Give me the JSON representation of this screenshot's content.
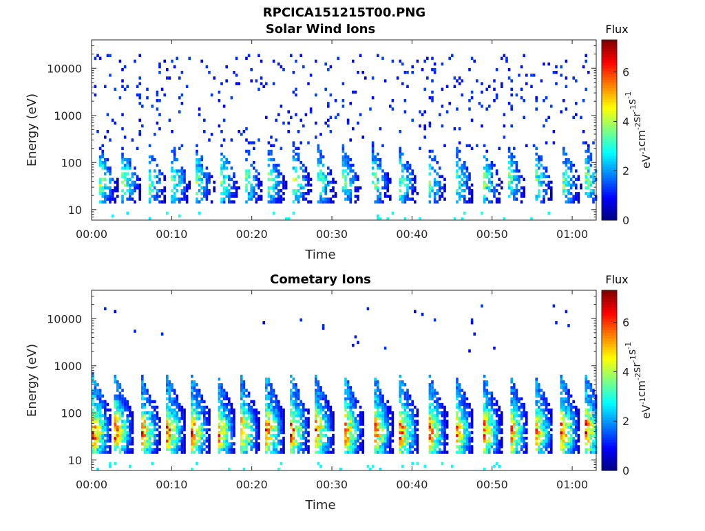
{
  "figure": {
    "title": "RPCICA151215T00.PNG"
  },
  "chart_data": [
    {
      "type": "heatmap",
      "title": "Solar Wind Ions",
      "xlabel": "Time",
      "ylabel": "Energy (eV)",
      "y_scale": "log",
      "xlim": [
        "00:00",
        "01:03"
      ],
      "ylim": [
        6,
        40000
      ],
      "x_ticks": [
        "00:00",
        "00:10",
        "00:20",
        "00:30",
        "00:40",
        "00:50",
        "01:00"
      ],
      "y_ticks": [
        10,
        100,
        1000,
        10000
      ],
      "y_tick_labels": [
        "10",
        "100",
        "1000",
        "10000"
      ],
      "colorbar": {
        "label": "Flux",
        "units_label": "eV-1cm-2sr-1s-1",
        "range": [
          0,
          7.3
        ],
        "ticks": [
          0,
          2,
          4,
          6
        ],
        "colormap": "jet"
      },
      "sweep_start_minutes": [
        0.8,
        3.7,
        6.9,
        9.8,
        12.8,
        15.9,
        18.9,
        21.8,
        25.0,
        28.0,
        31.1,
        34.9,
        38.2,
        41.8,
        45.2,
        48.7,
        51.7,
        55.1,
        58.6,
        61.5
      ],
      "peak_energy_eV": 40,
      "peak_flux": 4.3,
      "background_energy_range_eV": [
        200,
        20000
      ],
      "background_flux": 1.1,
      "grid": false
    },
    {
      "type": "heatmap",
      "title": "Cometary Ions",
      "xlabel": "Time",
      "ylabel": "Energy (eV)",
      "y_scale": "log",
      "xlim": [
        "00:00",
        "01:03"
      ],
      "ylim": [
        6,
        40000
      ],
      "x_ticks": [
        "00:00",
        "00:10",
        "00:20",
        "00:30",
        "00:40",
        "00:50",
        "01:00"
      ],
      "y_ticks": [
        10,
        100,
        1000,
        10000
      ],
      "y_tick_labels": [
        "10",
        "100",
        "1000",
        "10000"
      ],
      "colorbar": {
        "label": "Flux",
        "units_label": "eV-1cm-2sr-1s-1",
        "range": [
          0,
          7.3
        ],
        "ticks": [
          0,
          2,
          4,
          6
        ],
        "colormap": "jet"
      },
      "sweep_start_minutes": [
        0.0,
        2.7,
        6.0,
        9.2,
        12.3,
        15.5,
        18.4,
        21.6,
        24.7,
        27.7,
        31.4,
        35.1,
        38.3,
        41.9,
        45.2,
        48.7,
        52.0,
        55.1,
        58.4,
        61.5
      ],
      "peak_energy_eV": 40,
      "peak_flux": 6.8,
      "background_energy_range_eV": [
        2000,
        20000
      ],
      "background_flux": 1.0,
      "grid": false
    }
  ]
}
